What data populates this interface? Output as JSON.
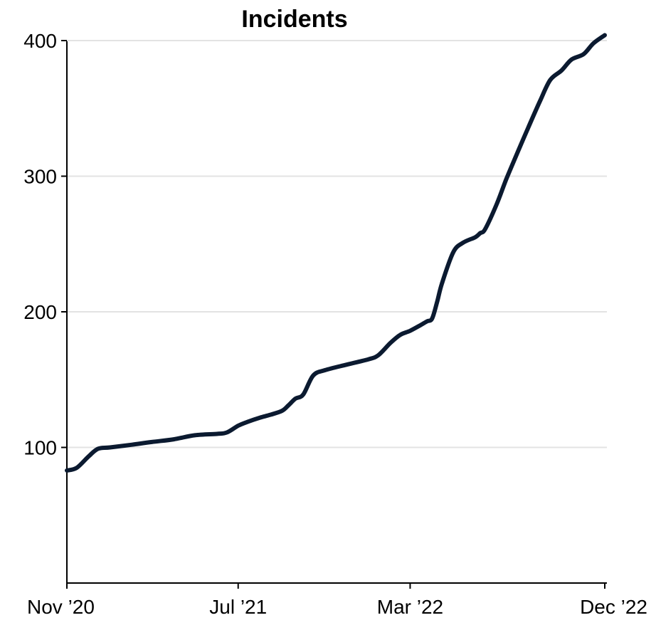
{
  "chart_data": {
    "type": "line",
    "title": "Incidents",
    "xlabel": "",
    "ylabel": "",
    "xlim": [
      "2020-11-01",
      "2022-12-01"
    ],
    "ylim": [
      0,
      400
    ],
    "grid": true,
    "color": "#0b1a30",
    "x_ticks": [
      {
        "date": "2020-11-01",
        "label": "Nov ’20"
      },
      {
        "date": "2021-07-01",
        "label": "Jul ’21"
      },
      {
        "date": "2022-03-01",
        "label": "Mar ’22"
      },
      {
        "date": "2022-12-01",
        "label": "Dec ’22"
      }
    ],
    "y_ticks": [
      100,
      200,
      300,
      400
    ],
    "series": [
      {
        "x": [
          "2020-11-01",
          "2020-11-15",
          "2020-12-01",
          "2020-12-15",
          "2021-01-01",
          "2021-02-01",
          "2021-03-01",
          "2021-04-01",
          "2021-05-01",
          "2021-06-01",
          "2021-06-15",
          "2021-07-01",
          "2021-07-15",
          "2021-08-01",
          "2021-08-15",
          "2021-09-01",
          "2021-09-10",
          "2021-09-20",
          "2021-10-01",
          "2021-10-15",
          "2021-11-01",
          "2021-12-01",
          "2022-01-01",
          "2022-01-15",
          "2022-02-01",
          "2022-02-15",
          "2022-03-01",
          "2022-03-15",
          "2022-03-25",
          "2022-04-01",
          "2022-04-08",
          "2022-04-15",
          "2022-05-01",
          "2022-05-15",
          "2022-06-01",
          "2022-06-08",
          "2022-06-15",
          "2022-07-01",
          "2022-07-15",
          "2022-08-01",
          "2022-08-15",
          "2022-09-01",
          "2022-09-15",
          "2022-10-01",
          "2022-10-15",
          "2022-11-01",
          "2022-11-15",
          "2022-12-01"
        ],
        "y": [
          83,
          85,
          93,
          99,
          100,
          102,
          104,
          106,
          109,
          110,
          111,
          116,
          119,
          122,
          124,
          127,
          131,
          136,
          139,
          153,
          157,
          161,
          165,
          168,
          177,
          183,
          186,
          190,
          193,
          195,
          207,
          221,
          244,
          251,
          255,
          258,
          261,
          279,
          298,
          319,
          336,
          356,
          371,
          378,
          386,
          390,
          398,
          404
        ]
      }
    ]
  }
}
